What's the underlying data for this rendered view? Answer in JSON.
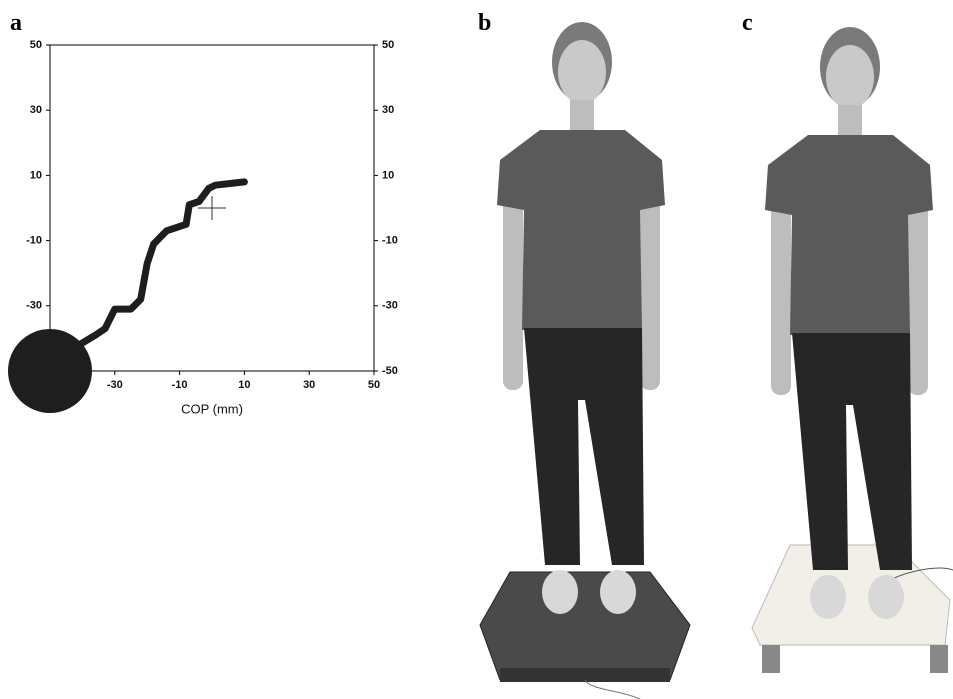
{
  "panel_labels": [
    "a",
    "b",
    "c"
  ],
  "chart_data": {
    "type": "line",
    "xlabel": "COP (mm)",
    "xlim": [
      -50,
      50
    ],
    "ylim": [
      -50,
      50
    ],
    "y2lim": [
      -50,
      50
    ],
    "xticks": [
      -30,
      -10,
      10,
      30,
      50
    ],
    "yticks": [
      -30,
      -10,
      10,
      30,
      50
    ],
    "y2ticks": [
      -50,
      -30,
      -10,
      10,
      30,
      50
    ],
    "color": "#1e1e1e",
    "x": [
      -41,
      -36,
      -33,
      -30,
      -25,
      -22,
      -20,
      -18,
      -14,
      -11,
      -8,
      -7,
      -4,
      -1,
      1,
      10
    ],
    "y": [
      -42,
      -39,
      -37,
      -31,
      -31,
      -28,
      -17,
      -11,
      -7,
      -6,
      -5,
      1,
      2,
      6,
      7,
      8
    ],
    "start": {
      "x": -50,
      "y": -50
    },
    "target": {
      "x": 0,
      "y": 0
    }
  }
}
